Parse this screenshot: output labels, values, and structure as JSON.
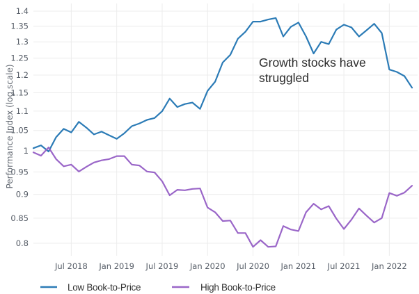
{
  "chart_data": {
    "type": "line",
    "title": "",
    "xlabel": "",
    "ylabel": "Performance Index (log scale)",
    "yscale": "log",
    "ylim": [
      0.78,
      1.41
    ],
    "yticks": [
      0.8,
      0.85,
      0.9,
      0.95,
      1,
      1.05,
      1.1,
      1.15,
      1.2,
      1.25,
      1.3,
      1.35,
      1.4
    ],
    "ytick_labels": [
      "0.8",
      "0.85",
      "0.9",
      "0.95",
      "1",
      "1.05",
      "1.1",
      "1.15",
      "1.2",
      "1.25",
      "1.3",
      "1.35",
      "1.4"
    ],
    "xlim": [
      "2018-02",
      "2022-04"
    ],
    "xticks": [
      "2018-07",
      "2019-01",
      "2019-07",
      "2020-01",
      "2020-07",
      "2021-01",
      "2021-07",
      "2022-01"
    ],
    "xtick_labels": [
      "Jul 2018",
      "Jan 2019",
      "Jul 2019",
      "Jan 2020",
      "Jul 2020",
      "Jan 2021",
      "Jul 2021",
      "Jan 2022"
    ],
    "grid": true,
    "legend_position": "bottom",
    "x": [
      "2018-02",
      "2018-03",
      "2018-04",
      "2018-05",
      "2018-06",
      "2018-07",
      "2018-08",
      "2018-09",
      "2018-10",
      "2018-11",
      "2018-12",
      "2019-01",
      "2019-02",
      "2019-03",
      "2019-04",
      "2019-05",
      "2019-06",
      "2019-07",
      "2019-08",
      "2019-09",
      "2019-10",
      "2019-11",
      "2019-12",
      "2020-01",
      "2020-02",
      "2020-03",
      "2020-04",
      "2020-05",
      "2020-06",
      "2020-07",
      "2020-08",
      "2020-09",
      "2020-10",
      "2020-11",
      "2020-12",
      "2021-01",
      "2021-02",
      "2021-03",
      "2021-04",
      "2021-05",
      "2021-06",
      "2021-07",
      "2021-08",
      "2021-09",
      "2021-10",
      "2021-11",
      "2021-12",
      "2022-01",
      "2022-02",
      "2022-03",
      "2022-04"
    ],
    "series": [
      {
        "name": "Low Book-to-Price",
        "color": "#2b7bb6",
        "values": [
          1.006,
          1.013,
          0.998,
          1.033,
          1.054,
          1.045,
          1.072,
          1.057,
          1.04,
          1.047,
          1.038,
          1.029,
          1.043,
          1.061,
          1.068,
          1.077,
          1.082,
          1.1,
          1.134,
          1.111,
          1.119,
          1.123,
          1.106,
          1.155,
          1.181,
          1.237,
          1.26,
          1.31,
          1.332,
          1.365,
          1.365,
          1.372,
          1.377,
          1.317,
          1.348,
          1.362,
          1.317,
          1.264,
          1.3,
          1.293,
          1.339,
          1.355,
          1.346,
          1.317,
          1.337,
          1.358,
          1.328,
          1.216,
          1.209,
          1.197,
          1.164
        ]
      },
      {
        "name": "High Book-to-Price",
        "color": "#9a66c8",
        "values": [
          0.996,
          0.988,
          1.008,
          0.98,
          0.963,
          0.967,
          0.951,
          0.962,
          0.972,
          0.977,
          0.98,
          0.987,
          0.987,
          0.967,
          0.965,
          0.951,
          0.949,
          0.929,
          0.898,
          0.91,
          0.909,
          0.912,
          0.913,
          0.872,
          0.862,
          0.844,
          0.845,
          0.82,
          0.82,
          0.793,
          0.806,
          0.793,
          0.794,
          0.834,
          0.827,
          0.824,
          0.862,
          0.88,
          0.868,
          0.875,
          0.849,
          0.828,
          0.847,
          0.87,
          0.855,
          0.841,
          0.85,
          0.903,
          0.897,
          0.904,
          0.919
        ]
      }
    ],
    "annotations": [
      {
        "lines": [
          "Growth stocks have",
          "struggled"
        ],
        "x": "2020-12",
        "y": 1.24
      }
    ]
  },
  "legend": {
    "items": [
      {
        "label": "Low Book-to-Price",
        "color": "#2b7bb6"
      },
      {
        "label": "High Book-to-Price",
        "color": "#9a66c8"
      }
    ]
  }
}
